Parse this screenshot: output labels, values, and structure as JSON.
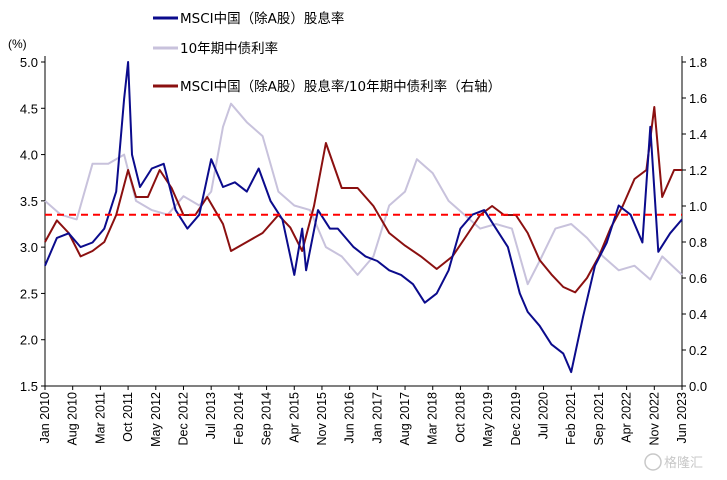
{
  "chart_data": {
    "type": "line",
    "y_unit_label": "(%)",
    "left_axis": {
      "ylim": [
        1.5,
        5.0
      ],
      "ticks": [
        "1.5",
        "2.0",
        "2.5",
        "3.0",
        "3.5",
        "4.0",
        "4.5",
        "5.0"
      ]
    },
    "right_axis": {
      "ylim": [
        0.0,
        1.8
      ],
      "ticks": [
        "0.0",
        "0.2",
        "0.4",
        "0.6",
        "0.8",
        "1.0",
        "1.2",
        "1.4",
        "1.6",
        "1.8"
      ]
    },
    "x_range": [
      "2010-01",
      "2023-06"
    ],
    "x_ticks": [
      "Jan 2010",
      "Aug 2010",
      "Mar 2011",
      "Oct 2011",
      "May 2012",
      "Dec 2012",
      "Jul 2013",
      "Feb 2014",
      "Sep 2014",
      "Apr 2015",
      "Nov 2015",
      "Jun 2016",
      "Jan 2017",
      "Aug 2017",
      "Mar 2018",
      "Oct 2018",
      "May 2019",
      "Dec 2019",
      "Jul 2020",
      "Feb 2021",
      "Sep 2021",
      "Apr 2022",
      "Nov 2022",
      "Jun 2023"
    ],
    "reference_line": {
      "axis": "left",
      "value": 3.35,
      "style": "dashed",
      "color": "#ff0000"
    },
    "legend_position": "top",
    "series": [
      {
        "name": "MSCI中国（除A股）股息率",
        "axis": "left",
        "color": "#0b0b8c",
        "x": [
          "2010-01",
          "2010-04",
          "2010-07",
          "2010-10",
          "2011-01",
          "2011-04",
          "2011-07",
          "2011-09",
          "2011-10",
          "2011-11",
          "2012-01",
          "2012-04",
          "2012-07",
          "2012-10",
          "2013-01",
          "2013-04",
          "2013-07",
          "2013-10",
          "2014-01",
          "2014-04",
          "2014-07",
          "2014-10",
          "2015-01",
          "2015-04",
          "2015-06",
          "2015-07",
          "2015-10",
          "2016-01",
          "2016-03",
          "2016-07",
          "2016-10",
          "2017-01",
          "2017-04",
          "2017-07",
          "2017-10",
          "2018-01",
          "2018-04",
          "2018-07",
          "2018-10",
          "2019-01",
          "2019-04",
          "2019-07",
          "2019-10",
          "2020-01",
          "2020-03",
          "2020-06",
          "2020-09",
          "2020-12",
          "2021-02",
          "2021-05",
          "2021-08",
          "2021-11",
          "2022-02",
          "2022-05",
          "2022-08",
          "2022-10",
          "2022-12",
          "2023-03",
          "2023-06"
        ],
        "values": [
          2.8,
          3.1,
          3.15,
          3.0,
          3.05,
          3.2,
          3.6,
          4.6,
          5.0,
          4.0,
          3.65,
          3.85,
          3.9,
          3.4,
          3.2,
          3.35,
          3.95,
          3.65,
          3.7,
          3.6,
          3.85,
          3.5,
          3.3,
          2.7,
          3.2,
          2.75,
          3.4,
          3.2,
          3.2,
          3.0,
          2.9,
          2.85,
          2.75,
          2.7,
          2.6,
          2.4,
          2.5,
          2.75,
          3.2,
          3.35,
          3.4,
          3.2,
          3.0,
          2.5,
          2.3,
          2.15,
          1.95,
          1.85,
          1.65,
          2.25,
          2.8,
          3.05,
          3.45,
          3.35,
          3.05,
          4.3,
          2.95,
          3.15,
          3.3
        ]
      },
      {
        "name": "10年期中债利率",
        "axis": "left",
        "color": "#c8c2dc",
        "x": [
          "2010-01",
          "2010-05",
          "2010-09",
          "2011-01",
          "2011-05",
          "2011-09",
          "2011-12",
          "2012-04",
          "2012-08",
          "2012-12",
          "2013-04",
          "2013-07",
          "2013-10",
          "2013-12",
          "2014-04",
          "2014-08",
          "2014-12",
          "2015-04",
          "2015-08",
          "2015-12",
          "2016-04",
          "2016-08",
          "2016-12",
          "2017-04",
          "2017-08",
          "2017-11",
          "2018-03",
          "2018-07",
          "2018-11",
          "2019-03",
          "2019-07",
          "2019-11",
          "2020-03",
          "2020-06",
          "2020-10",
          "2021-02",
          "2021-06",
          "2021-10",
          "2022-02",
          "2022-06",
          "2022-10",
          "2023-01",
          "2023-06"
        ],
        "values": [
          3.5,
          3.35,
          3.3,
          3.9,
          3.9,
          4.0,
          3.5,
          3.4,
          3.35,
          3.55,
          3.45,
          3.6,
          4.3,
          4.55,
          4.35,
          4.2,
          3.6,
          3.45,
          3.4,
          3.0,
          2.9,
          2.7,
          2.9,
          3.45,
          3.6,
          3.95,
          3.8,
          3.5,
          3.35,
          3.2,
          3.25,
          3.2,
          2.6,
          2.85,
          3.2,
          3.25,
          3.1,
          2.9,
          2.75,
          2.8,
          2.65,
          2.9,
          2.7
        ]
      },
      {
        "name": "MSCI中国（除A股）股息率/10年期中债利率（右轴）",
        "axis": "right",
        "color": "#8b1010",
        "x": [
          "2010-01",
          "2010-04",
          "2010-07",
          "2010-10",
          "2011-01",
          "2011-04",
          "2011-07",
          "2011-10",
          "2011-12",
          "2012-03",
          "2012-06",
          "2012-09",
          "2012-12",
          "2013-03",
          "2013-06",
          "2013-10",
          "2013-12",
          "2014-04",
          "2014-08",
          "2014-12",
          "2015-03",
          "2015-06",
          "2015-09",
          "2015-12",
          "2016-04",
          "2016-08",
          "2016-12",
          "2017-04",
          "2017-08",
          "2017-12",
          "2018-04",
          "2018-08",
          "2018-12",
          "2019-03",
          "2019-06",
          "2019-09",
          "2019-12",
          "2020-03",
          "2020-06",
          "2020-09",
          "2020-12",
          "2021-03",
          "2021-06",
          "2021-09",
          "2021-12",
          "2022-03",
          "2022-06",
          "2022-09",
          "2022-11",
          "2023-01",
          "2023-04",
          "2023-06"
        ],
        "values": [
          0.8,
          0.92,
          0.85,
          0.72,
          0.75,
          0.8,
          0.95,
          1.2,
          1.05,
          1.05,
          1.2,
          1.1,
          0.95,
          0.95,
          1.05,
          0.9,
          0.75,
          0.8,
          0.85,
          0.95,
          0.88,
          0.75,
          1.0,
          1.35,
          1.1,
          1.1,
          1.0,
          0.85,
          0.78,
          0.72,
          0.65,
          0.72,
          0.85,
          0.95,
          1.0,
          0.95,
          0.95,
          0.85,
          0.7,
          0.62,
          0.55,
          0.52,
          0.6,
          0.72,
          0.88,
          1.0,
          1.15,
          1.2,
          1.55,
          1.05,
          1.2,
          1.2
        ]
      }
    ]
  },
  "watermark": {
    "text": "格隆汇"
  }
}
